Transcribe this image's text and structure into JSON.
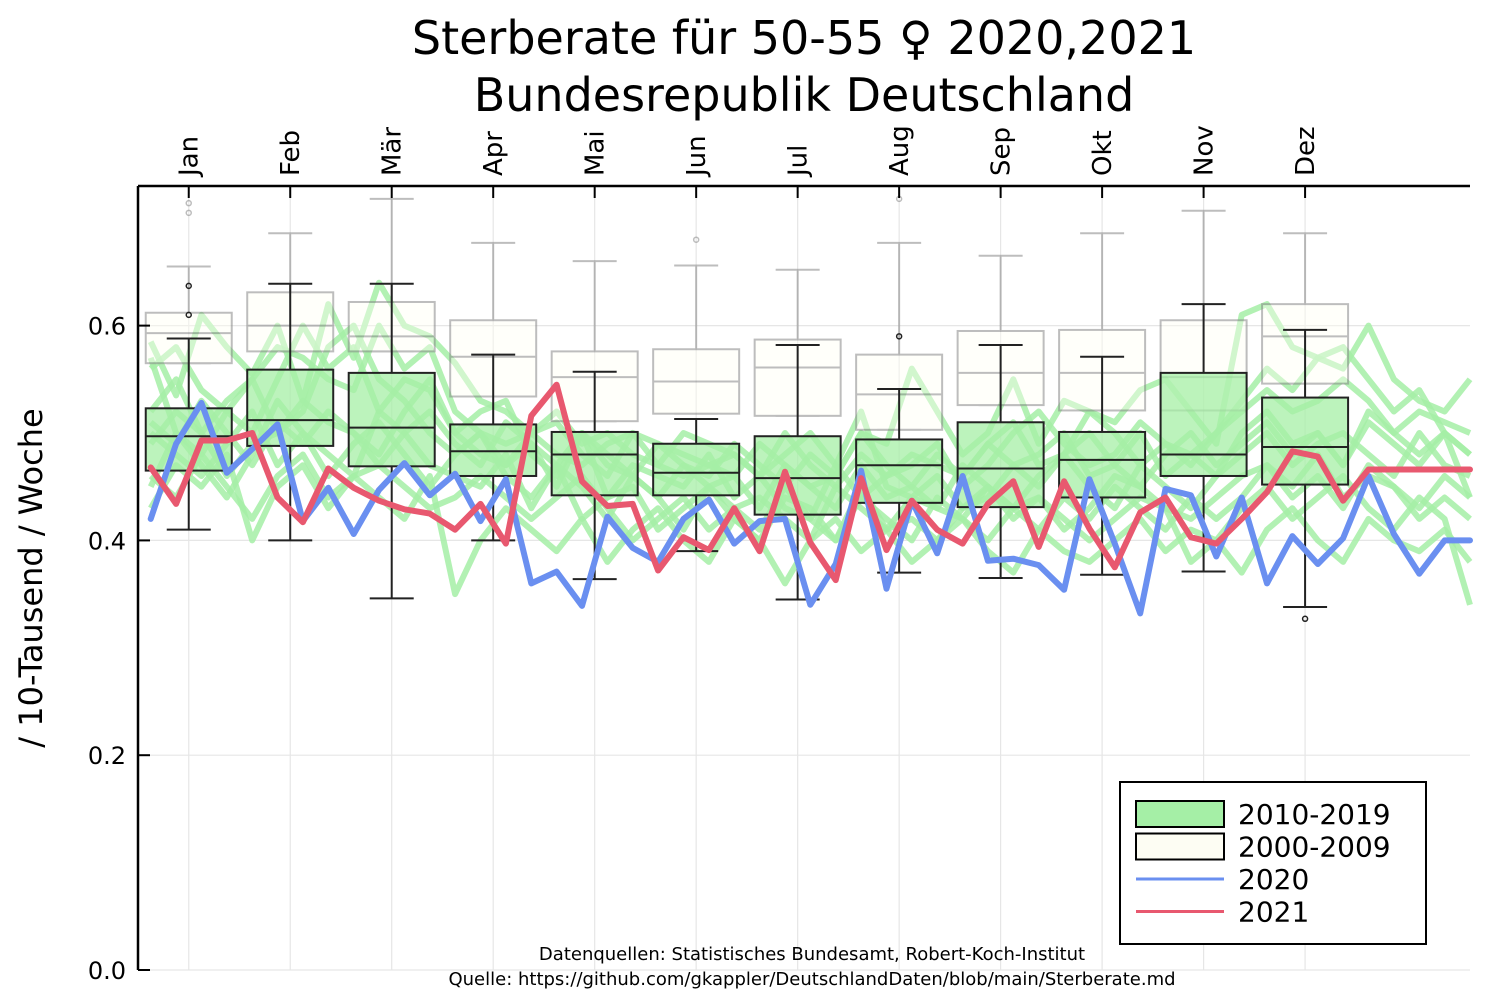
{
  "chart_data": {
    "type": "box",
    "title_line1": "Sterberate für 50-55  ♀ 2020,2021",
    "title_line2": "Bundesrepublik Deutschland",
    "ylabel": "/ 10-Tausend / Woche",
    "ylim": [
      0,
      0.73
    ],
    "yticks": [
      {
        "value": 0.0,
        "label": "0.0"
      },
      {
        "value": 0.2,
        "label": "0.2"
      },
      {
        "value": 0.4,
        "label": "0.4"
      },
      {
        "value": 0.6,
        "label": "0.6"
      }
    ],
    "xlim": [
      0.5,
      53.0
    ],
    "months": [
      {
        "label": "Jan",
        "pos": 2.5
      },
      {
        "label": "Feb",
        "pos": 6.5
      },
      {
        "label": "Mär",
        "pos": 10.5
      },
      {
        "label": "Apr",
        "pos": 14.5
      },
      {
        "label": "Mai",
        "pos": 18.5
      },
      {
        "label": "Jun",
        "pos": 22.5
      },
      {
        "label": "Jul",
        "pos": 26.5
      },
      {
        "label": "Aug",
        "pos": 30.5
      },
      {
        "label": "Sep",
        "pos": 34.5
      },
      {
        "label": "Okt",
        "pos": 38.5
      },
      {
        "label": "Nov",
        "pos": 42.5
      },
      {
        "label": "Dez",
        "pos": 46.5
      }
    ],
    "grid": true,
    "legend_position": "bottom-right",
    "legend": [
      {
        "label": "2010-2019",
        "type": "box",
        "fill": "#a5efa6",
        "stroke": "#000000"
      },
      {
        "label": "2000-2009",
        "type": "box",
        "fill": "#fdfdf3",
        "stroke": "#000000"
      },
      {
        "label": "2020",
        "type": "line",
        "color": "#6a8ff0"
      },
      {
        "label": "2021",
        "type": "line",
        "color": "#e8586f"
      }
    ],
    "boxes_2000_2009": [
      {
        "month": "Jan",
        "q1": 0.565,
        "median": 0.593,
        "q3": 0.612,
        "lo": 0.565,
        "hi": 0.655,
        "outliers": [
          0.705,
          0.714
        ]
      },
      {
        "month": "Feb",
        "q1": 0.576,
        "median": 0.6,
        "q3": 0.631,
        "lo": 0.576,
        "hi": 0.686,
        "outliers": []
      },
      {
        "month": "Mär",
        "q1": 0.576,
        "median": 0.59,
        "q3": 0.622,
        "lo": 0.576,
        "hi": 0.718,
        "outliers": []
      },
      {
        "month": "Apr",
        "q1": 0.534,
        "median": 0.571,
        "q3": 0.605,
        "lo": 0.534,
        "hi": 0.677,
        "outliers": []
      },
      {
        "month": "Mai",
        "q1": 0.511,
        "median": 0.552,
        "q3": 0.576,
        "lo": 0.511,
        "hi": 0.66,
        "outliers": []
      },
      {
        "month": "Jun",
        "q1": 0.518,
        "median": 0.548,
        "q3": 0.578,
        "lo": 0.518,
        "hi": 0.656,
        "outliers": [
          0.68
        ]
      },
      {
        "month": "Jul",
        "q1": 0.516,
        "median": 0.561,
        "q3": 0.587,
        "lo": 0.516,
        "hi": 0.652,
        "outliers": []
      },
      {
        "month": "Aug",
        "q1": 0.503,
        "median": 0.536,
        "q3": 0.573,
        "lo": 0.503,
        "hi": 0.677,
        "outliers": [
          0.718
        ]
      },
      {
        "month": "Sep",
        "q1": 0.526,
        "median": 0.556,
        "q3": 0.595,
        "lo": 0.526,
        "hi": 0.665,
        "outliers": []
      },
      {
        "month": "Okt",
        "q1": 0.521,
        "median": 0.556,
        "q3": 0.596,
        "lo": 0.521,
        "hi": 0.686,
        "outliers": []
      },
      {
        "month": "Nov",
        "q1": 0.521,
        "median": 0.552,
        "q3": 0.605,
        "lo": 0.521,
        "hi": 0.707,
        "outliers": []
      },
      {
        "month": "Dez",
        "q1": 0.546,
        "median": 0.59,
        "q3": 0.62,
        "lo": 0.546,
        "hi": 0.686,
        "outliers": []
      }
    ],
    "boxes_2010_2019": [
      {
        "month": "Jan",
        "q1": 0.465,
        "median": 0.497,
        "q3": 0.523,
        "lo": 0.41,
        "hi": 0.588,
        "outliers": [
          0.61,
          0.637
        ]
      },
      {
        "month": "Feb",
        "q1": 0.488,
        "median": 0.512,
        "q3": 0.559,
        "lo": 0.4,
        "hi": 0.639,
        "outliers": []
      },
      {
        "month": "Mär",
        "q1": 0.469,
        "median": 0.505,
        "q3": 0.556,
        "lo": 0.346,
        "hi": 0.639,
        "outliers": []
      },
      {
        "month": "Apr",
        "q1": 0.46,
        "median": 0.483,
        "q3": 0.508,
        "lo": 0.4,
        "hi": 0.573,
        "outliers": []
      },
      {
        "month": "Mai",
        "q1": 0.442,
        "median": 0.48,
        "q3": 0.501,
        "lo": 0.364,
        "hi": 0.557,
        "outliers": []
      },
      {
        "month": "Jun",
        "q1": 0.442,
        "median": 0.463,
        "q3": 0.49,
        "lo": 0.39,
        "hi": 0.513,
        "outliers": []
      },
      {
        "month": "Jul",
        "q1": 0.424,
        "median": 0.458,
        "q3": 0.497,
        "lo": 0.345,
        "hi": 0.582,
        "outliers": []
      },
      {
        "month": "Aug",
        "q1": 0.435,
        "median": 0.47,
        "q3": 0.494,
        "lo": 0.37,
        "hi": 0.541,
        "outliers": [
          0.59
        ]
      },
      {
        "month": "Sep",
        "q1": 0.431,
        "median": 0.467,
        "q3": 0.51,
        "lo": 0.365,
        "hi": 0.582,
        "outliers": []
      },
      {
        "month": "Okt",
        "q1": 0.44,
        "median": 0.475,
        "q3": 0.501,
        "lo": 0.368,
        "hi": 0.571,
        "outliers": []
      },
      {
        "month": "Nov",
        "q1": 0.46,
        "median": 0.48,
        "q3": 0.556,
        "lo": 0.371,
        "hi": 0.62,
        "outliers": []
      },
      {
        "month": "Dez",
        "q1": 0.452,
        "median": 0.487,
        "q3": 0.533,
        "lo": 0.338,
        "hi": 0.596,
        "outliers": [
          0.327
        ]
      }
    ],
    "series": [
      {
        "name": "2020",
        "color": "#6a8ff0",
        "x": [
          1,
          2,
          3,
          4,
          5,
          6,
          7,
          8,
          9,
          10,
          11,
          12,
          13,
          14,
          15,
          16,
          17,
          18,
          19,
          20,
          21,
          22,
          23,
          24,
          25,
          26,
          27,
          28,
          29,
          30,
          31,
          32,
          33,
          34,
          35,
          36,
          37,
          38,
          39,
          40,
          41,
          42,
          43,
          44,
          45,
          46,
          47,
          48,
          49,
          50,
          51,
          52,
          53
        ],
        "y": [
          0.42,
          0.49,
          0.528,
          0.463,
          0.485,
          0.508,
          0.418,
          0.449,
          0.406,
          0.447,
          0.472,
          0.442,
          0.462,
          0.418,
          0.457,
          0.36,
          0.371,
          0.339,
          0.422,
          0.393,
          0.38,
          0.42,
          0.438,
          0.397,
          0.418,
          0.42,
          0.34,
          0.378,
          0.465,
          0.355,
          0.437,
          0.388,
          0.46,
          0.381,
          0.383,
          0.377,
          0.354,
          0.457,
          0.397,
          0.332,
          0.448,
          0.442,
          0.385,
          0.44,
          0.36,
          0.404,
          0.378,
          0.402,
          0.46,
          0.406,
          0.369,
          0.4,
          0.4
        ]
      },
      {
        "name": "2021",
        "color": "#e8586f",
        "x": [
          1,
          2,
          3,
          4,
          5,
          6,
          7,
          8,
          9,
          10,
          11,
          12,
          13,
          14,
          15,
          16,
          17,
          18,
          19,
          20,
          21,
          22,
          23,
          24,
          25,
          26,
          27,
          28,
          29,
          30,
          31,
          32,
          33,
          34,
          35,
          36,
          37,
          38,
          39,
          40,
          41,
          42,
          43,
          44,
          45,
          46,
          47,
          48,
          49,
          50,
          51,
          52,
          53
        ],
        "y": [
          0.468,
          0.434,
          0.493,
          0.493,
          0.5,
          0.44,
          0.417,
          0.467,
          0.449,
          0.437,
          0.429,
          0.425,
          0.41,
          0.434,
          0.397,
          0.516,
          0.545,
          0.455,
          0.432,
          0.434,
          0.372,
          0.403,
          0.391,
          0.43,
          0.39,
          0.464,
          0.398,
          0.363,
          0.458,
          0.391,
          0.437,
          0.41,
          0.397,
          0.434,
          0.455,
          0.394,
          0.455,
          0.411,
          0.375,
          0.426,
          0.44,
          0.403,
          0.397,
          0.42,
          0.445,
          0.483,
          0.478,
          0.437,
          0.466,
          0.466,
          0.466,
          0.466,
          0.466
        ]
      }
    ],
    "background_lines_color": "#a5efa6",
    "background_lines": [
      [
        0.585,
        0.535,
        0.61,
        0.58,
        0.555,
        0.6,
        0.53,
        0.62,
        0.57,
        0.64,
        0.6,
        0.59,
        0.565,
        0.53,
        0.52,
        0.5,
        0.51,
        0.48,
        0.46,
        0.5,
        0.49,
        0.48,
        0.47,
        0.46,
        0.49,
        0.47,
        0.45,
        0.46,
        0.5,
        0.49,
        0.56,
        0.52,
        0.48,
        0.5,
        0.55,
        0.49,
        0.53,
        0.52,
        0.51,
        0.54,
        0.55,
        0.52,
        0.49,
        0.61,
        0.62,
        0.58,
        0.57,
        0.56,
        0.6,
        0.55,
        0.53,
        0.52,
        0.55
      ],
      [
        0.57,
        0.5,
        0.48,
        0.52,
        0.5,
        0.55,
        0.6,
        0.56,
        0.58,
        0.52,
        0.55,
        0.54,
        0.5,
        0.52,
        0.53,
        0.48,
        0.46,
        0.5,
        0.44,
        0.47,
        0.46,
        0.45,
        0.48,
        0.44,
        0.46,
        0.43,
        0.42,
        0.47,
        0.52,
        0.45,
        0.44,
        0.46,
        0.43,
        0.44,
        0.47,
        0.48,
        0.5,
        0.46,
        0.47,
        0.5,
        0.46,
        0.48,
        0.46,
        0.5,
        0.52,
        0.49,
        0.5,
        0.47,
        0.52,
        0.5,
        0.48,
        0.5,
        0.44
      ],
      [
        0.5,
        0.48,
        0.46,
        0.49,
        0.52,
        0.47,
        0.5,
        0.48,
        0.46,
        0.52,
        0.5,
        0.47,
        0.46,
        0.45,
        0.48,
        0.43,
        0.47,
        0.42,
        0.44,
        0.45,
        0.41,
        0.43,
        0.45,
        0.42,
        0.4,
        0.44,
        0.43,
        0.4,
        0.45,
        0.41,
        0.42,
        0.4,
        0.43,
        0.45,
        0.42,
        0.44,
        0.41,
        0.43,
        0.46,
        0.45,
        0.43,
        0.42,
        0.44,
        0.46,
        0.47,
        0.45,
        0.48,
        0.44,
        0.46,
        0.45,
        0.42,
        0.44,
        0.42
      ],
      [
        0.52,
        0.55,
        0.5,
        0.53,
        0.55,
        0.58,
        0.57,
        0.55,
        0.54,
        0.6,
        0.56,
        0.58,
        0.52,
        0.5,
        0.49,
        0.5,
        0.48,
        0.47,
        0.49,
        0.5,
        0.47,
        0.46,
        0.47,
        0.48,
        0.46,
        0.48,
        0.5,
        0.47,
        0.44,
        0.46,
        0.48,
        0.47,
        0.46,
        0.49,
        0.51,
        0.47,
        0.48,
        0.52,
        0.5,
        0.47,
        0.49,
        0.48,
        0.5,
        0.53,
        0.56,
        0.54,
        0.57,
        0.58,
        0.55,
        0.52,
        0.54,
        0.5,
        0.48
      ],
      [
        0.46,
        0.44,
        0.48,
        0.45,
        0.42,
        0.46,
        0.48,
        0.44,
        0.46,
        0.47,
        0.45,
        0.43,
        0.44,
        0.46,
        0.44,
        0.42,
        0.44,
        0.46,
        0.43,
        0.4,
        0.42,
        0.44,
        0.41,
        0.43,
        0.44,
        0.42,
        0.4,
        0.45,
        0.43,
        0.41,
        0.44,
        0.43,
        0.42,
        0.4,
        0.43,
        0.44,
        0.42,
        0.4,
        0.42,
        0.44,
        0.43,
        0.38,
        0.4,
        0.43,
        0.45,
        0.42,
        0.44,
        0.46,
        0.43,
        0.41,
        0.44,
        0.42,
        0.34
      ],
      [
        0.49,
        0.52,
        0.5,
        0.46,
        0.49,
        0.5,
        0.53,
        0.51,
        0.5,
        0.48,
        0.52,
        0.55,
        0.5,
        0.48,
        0.47,
        0.5,
        0.52,
        0.49,
        0.5,
        0.48,
        0.47,
        0.5,
        0.49,
        0.48,
        0.46,
        0.5,
        0.47,
        0.45,
        0.48,
        0.46,
        0.47,
        0.49,
        0.45,
        0.47,
        0.5,
        0.52,
        0.49,
        0.47,
        0.48,
        0.51,
        0.49,
        0.47,
        0.5,
        0.52,
        0.54,
        0.52,
        0.53,
        0.55,
        0.53,
        0.5,
        0.52,
        0.51,
        0.5
      ],
      [
        0.56,
        0.58,
        0.54,
        0.52,
        0.55,
        0.5,
        0.52,
        0.58,
        0.6,
        0.55,
        0.53,
        0.5,
        0.48,
        0.5,
        0.47,
        0.49,
        0.45,
        0.5,
        0.47,
        0.46,
        0.44,
        0.47,
        0.45,
        0.46,
        0.43,
        0.47,
        0.45,
        0.43,
        0.47,
        0.44,
        0.45,
        0.43,
        0.47,
        0.45,
        0.43,
        0.46,
        0.48,
        0.45,
        0.43,
        0.47,
        0.45,
        0.43,
        0.46,
        0.48,
        0.5,
        0.47,
        0.49,
        0.5,
        0.48,
        0.46,
        0.5,
        0.47,
        0.46
      ],
      [
        0.43,
        0.47,
        0.45,
        0.48,
        0.4,
        0.45,
        0.47,
        0.43,
        0.46,
        0.44,
        0.42,
        0.46,
        0.35,
        0.4,
        0.43,
        0.41,
        0.39,
        0.42,
        0.38,
        0.41,
        0.43,
        0.4,
        0.38,
        0.42,
        0.4,
        0.36,
        0.4,
        0.42,
        0.39,
        0.41,
        0.38,
        0.4,
        0.42,
        0.39,
        0.37,
        0.41,
        0.39,
        0.38,
        0.4,
        0.42,
        0.39,
        0.41,
        0.4,
        0.37,
        0.41,
        0.43,
        0.4,
        0.38,
        0.42,
        0.4,
        0.39,
        0.41,
        0.38
      ],
      [
        0.51,
        0.49,
        0.53,
        0.5,
        0.47,
        0.51,
        0.49,
        0.52,
        0.5,
        0.47,
        0.5,
        0.52,
        0.49,
        0.47,
        0.51,
        0.49,
        0.47,
        0.5,
        0.48,
        0.46,
        0.49,
        0.47,
        0.46,
        0.49,
        0.47,
        0.45,
        0.48,
        0.46,
        0.5,
        0.47,
        0.45,
        0.48,
        0.46,
        0.49,
        0.47,
        0.45,
        0.48,
        0.5,
        0.47,
        0.45,
        0.48,
        0.5,
        0.47,
        0.49,
        0.51,
        0.48,
        0.5,
        0.47,
        0.51,
        0.49,
        0.47,
        0.5,
        0.48
      ],
      [
        0.45,
        0.5,
        0.47,
        0.44,
        0.48,
        0.53,
        0.5,
        0.46,
        0.49,
        0.51,
        0.48,
        0.45,
        0.48,
        0.5,
        0.46,
        0.44,
        0.47,
        0.45,
        0.42,
        0.46,
        0.44,
        0.41,
        0.45,
        0.43,
        0.41,
        0.45,
        0.42,
        0.4,
        0.44,
        0.42,
        0.4,
        0.44,
        0.42,
        0.45,
        0.43,
        0.41,
        0.44,
        0.42,
        0.45,
        0.43,
        0.41,
        0.44,
        0.42,
        0.44,
        0.47,
        0.44,
        0.46,
        0.43,
        0.47,
        0.45,
        0.43,
        0.46,
        0.44
      ]
    ],
    "footnote_line1": "Datenquellen: Statistisches Bundesamt, Robert-Koch-Institut",
    "footnote_line2": "Quelle: https://github.com/gkappler/DeutschlandDaten/blob/main/Sterberate.md"
  }
}
